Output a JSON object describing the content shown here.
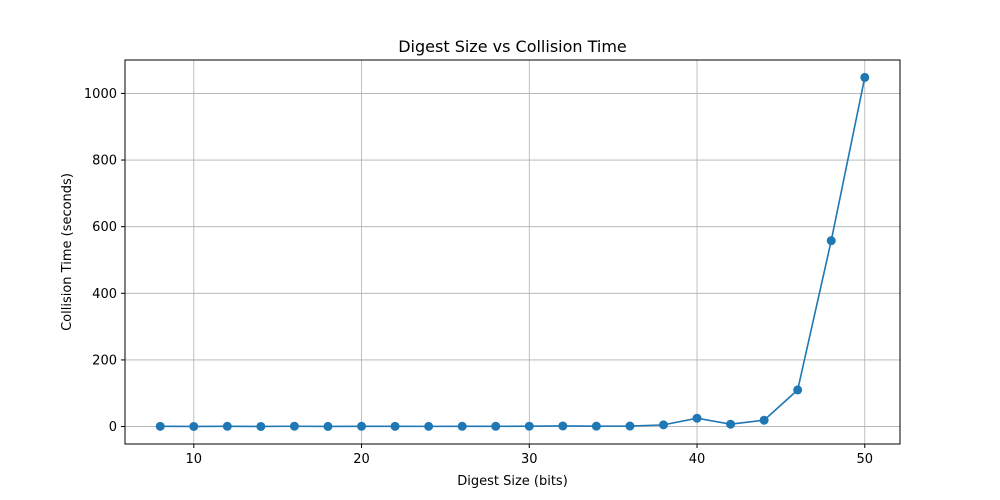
{
  "chart_data": {
    "type": "line",
    "title": "Digest Size vs Collision Time",
    "xlabel": "Digest Size (bits)",
    "ylabel": "Collision Time (seconds)",
    "x": [
      8,
      10,
      12,
      14,
      16,
      18,
      20,
      22,
      24,
      26,
      28,
      30,
      32,
      34,
      36,
      38,
      40,
      42,
      44,
      46,
      48,
      50
    ],
    "series": [
      {
        "values": [
          0.6,
          0.3,
          0.8,
          0.2,
          0.9,
          0.4,
          0.7,
          0.6,
          0.5,
          0.8,
          0.7,
          1.0,
          1.8,
          1.2,
          1.5,
          5,
          25,
          7,
          19,
          110,
          558,
          1048
        ],
        "color": "#1f77b4",
        "marker": "circle"
      }
    ],
    "xlim": [
      5.9,
      52.1
    ],
    "ylim": [
      -52.4,
      1100.3
    ],
    "xticks": [
      10,
      20,
      30,
      40,
      50
    ],
    "yticks": [
      0,
      200,
      400,
      600,
      800,
      1000
    ],
    "grid": true
  }
}
